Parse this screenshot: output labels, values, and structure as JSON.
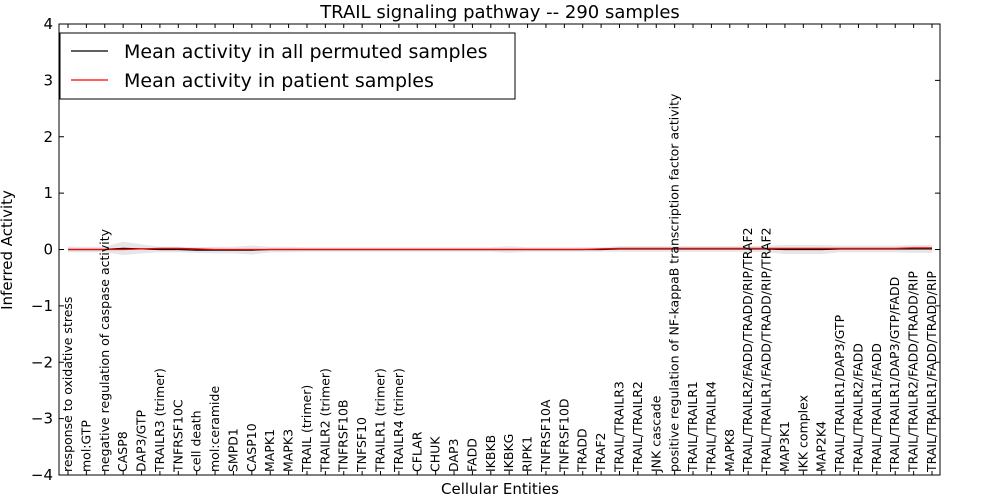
{
  "chart_data": {
    "type": "line",
    "title": "TRAIL signaling pathway -- 290 samples",
    "xlabel": "Cellular Entities",
    "ylabel": "Inferred Activity",
    "ylim": [
      -4,
      4
    ],
    "yticks": [
      -4,
      -3,
      -2,
      -1,
      0,
      1,
      2,
      3,
      4
    ],
    "legend_position": "top-left",
    "categories": [
      "response to oxidative stress",
      "mol:GTP",
      "negative regulation of caspase activity",
      "CASP8",
      "DAP3/GTP",
      "TRAILR3 (trimer)",
      "TNFRSF10C",
      "cell death",
      "mol:ceramide",
      "SMPD1",
      "CASP10",
      "MAPK1",
      "MAPK3",
      "TRAIL (trimer)",
      "TRAILR2 (trimer)",
      "TNFRSF10B",
      "TNFSF10",
      "TRAILR1 (trimer)",
      "TRAILR4 (trimer)",
      "CFLAR",
      "CHUK",
      "DAP3",
      "FADD",
      "IKBKB",
      "IKBKG",
      "RIPK1",
      "TNFRSF10A",
      "TNFRSF10D",
      "TRADD",
      "TRAF2",
      "TRAIL/TRAILR3",
      "TRAIL/TRAILR2",
      "JNK cascade",
      "positive regulation of NF-kappaB transcription factor activity",
      "TRAIL/TRAILR1",
      "TRAIL/TRAILR4",
      "MAPK8",
      "TRAIL/TRAILR2/FADD/TRADD/RIP/TRAF2",
      "TRAIL/TRAILR1/FADD/TRADD/RIP/TRAF2",
      "MAP3K1",
      "IKK complex",
      "MAP2K4",
      "TRAIL/TRAILR1/DAP3/GTP",
      "TRAIL/TRAILR2/FADD",
      "TRAIL/TRAILR1/FADD",
      "TRAIL/TRAILR1/DAP3/GTP/FADD",
      "TRAIL/TRAILR2/FADD/TRADD/RIP",
      "TRAIL/TRAILR1/FADD/TRADD/RIP"
    ],
    "series": [
      {
        "name": "Mean activity in all permuted samples",
        "color": "#000000",
        "values": [
          0,
          0,
          0,
          0.02,
          0.01,
          0,
          0,
          -0.01,
          -0.01,
          -0.01,
          -0.01,
          0,
          0,
          0,
          0,
          0,
          0,
          0,
          0,
          0,
          0,
          0,
          0,
          0,
          0,
          0,
          0,
          0,
          0,
          0,
          0.01,
          0.01,
          0.01,
          0.01,
          0.01,
          0.01,
          0.01,
          0.01,
          0.01,
          0,
          0,
          0,
          0.01,
          0.01,
          0.01,
          0.01,
          0.01,
          0.01
        ]
      },
      {
        "name": "Mean activity in patient samples",
        "color": "#ff0000",
        "values": [
          0,
          0,
          0,
          0,
          0.01,
          0.02,
          0.02,
          0.01,
          0,
          0,
          0,
          0,
          0,
          0,
          0,
          0,
          0,
          0,
          0,
          0,
          0,
          0,
          0,
          0,
          0,
          0,
          0,
          0,
          0,
          0.01,
          0.02,
          0.02,
          0.02,
          0.02,
          0.02,
          0.02,
          0.02,
          0.02,
          0.02,
          0.02,
          0.02,
          0.02,
          0.02,
          0.02,
          0.02,
          0.02,
          0.03,
          0.03
        ]
      }
    ],
    "band_spread": [
      0.05,
      0.05,
      0.05,
      0.12,
      0.08,
      0.05,
      0.05,
      0.05,
      0.06,
      0.06,
      0.08,
      0.05,
      0.05,
      0.04,
      0.04,
      0.04,
      0.04,
      0.04,
      0.04,
      0.04,
      0.04,
      0.04,
      0.04,
      0.04,
      0.06,
      0.04,
      0.04,
      0.04,
      0.04,
      0.04,
      0.05,
      0.05,
      0.05,
      0.05,
      0.05,
      0.05,
      0.05,
      0.05,
      0.06,
      0.08,
      0.08,
      0.08,
      0.06,
      0.06,
      0.06,
      0.06,
      0.07,
      0.07
    ]
  }
}
